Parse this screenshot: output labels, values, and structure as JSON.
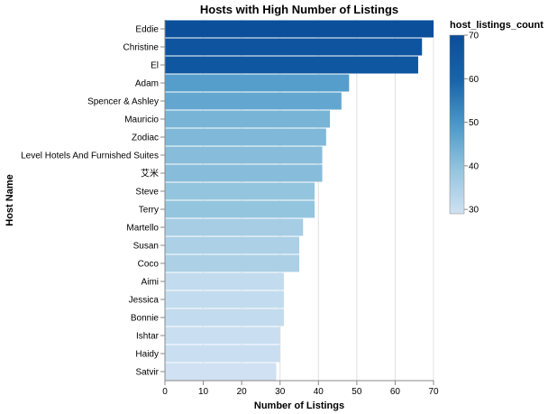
{
  "chart_data": {
    "type": "bar",
    "orientation": "horizontal",
    "title": "Hosts with High Number of Listings",
    "xlabel": "Number of Listings",
    "ylabel": "Host Name",
    "xlim": [
      0,
      70
    ],
    "xticks": [
      0,
      10,
      20,
      30,
      40,
      50,
      60,
      70
    ],
    "grid": true,
    "categories": [
      "Eddie",
      "Christine",
      "El",
      "Adam",
      "Spencer & Ashley",
      "Mauricio",
      "Zodiac",
      "Level Hotels And Furnished Suites",
      "艾米",
      "Steve",
      "Terry",
      "Martello",
      "Susan",
      "Coco",
      "Aimi",
      "Jessica",
      "Bonnie",
      "Ishtar",
      "Haidy",
      "Satvir"
    ],
    "values": [
      70,
      67,
      66,
      48,
      46,
      43,
      42,
      41,
      41,
      39,
      39,
      36,
      35,
      35,
      31,
      31,
      31,
      30,
      30,
      29
    ],
    "legend": {
      "title": "host_listings_count",
      "placement": "right",
      "ticks": [
        70,
        60,
        50,
        40,
        30
      ],
      "domain": [
        29,
        70
      ],
      "colors": [
        "#cfe1f2",
        "#93c4de",
        "#4a98c9",
        "#1764ab",
        "#0b4e9a"
      ]
    }
  }
}
